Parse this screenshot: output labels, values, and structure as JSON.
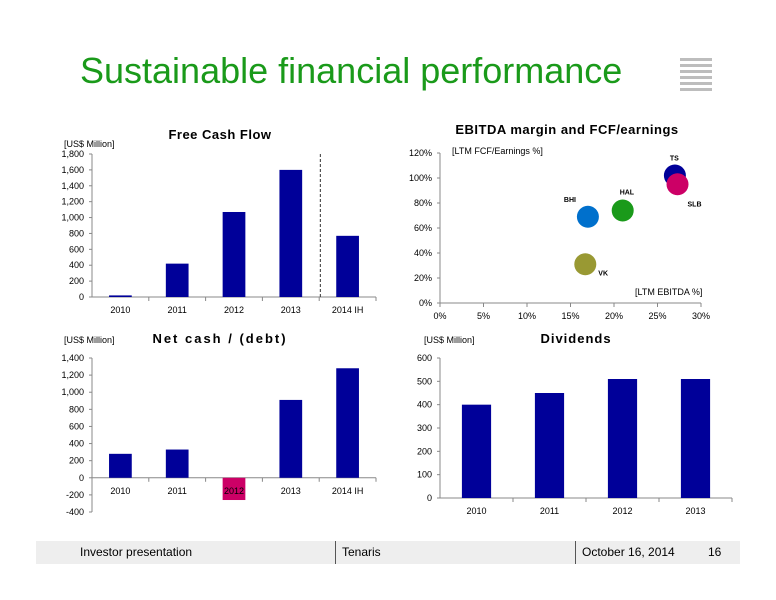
{
  "title": "Sustainable financial performance",
  "logo_icon": "tenaris-logo-icon",
  "footer": {
    "left": "Investor presentation",
    "center": "Tenaris",
    "date": "October 16, 2014",
    "page": "16"
  },
  "colors": {
    "bar": "#000099",
    "negative": "#cc0066",
    "title": "#1a9a1a"
  },
  "chart_data": [
    {
      "id": "fcf",
      "type": "bar",
      "title": "Free Cash Flow",
      "unit_label": "[US$ Million]",
      "categories": [
        "2010",
        "2011",
        "2012",
        "2013",
        "2014 IH"
      ],
      "values": [
        20,
        420,
        1070,
        1600,
        770
      ],
      "ylim": [
        0,
        1800
      ],
      "yticks": [
        "0",
        "200",
        "400",
        "600",
        "800",
        "1,000",
        "1,200",
        "1,400",
        "1,600",
        "1,800"
      ],
      "ytick_values": [
        0,
        200,
        400,
        600,
        800,
        1000,
        1200,
        1400,
        1600,
        1800
      ],
      "grid": false,
      "dashed_separator_before": "2014 IH"
    },
    {
      "id": "ebitda",
      "type": "scatter",
      "title": "EBITDA margin and FCF/earnings",
      "ylabel": "[LTM FCF/Earnings %]",
      "xlabel": "[LTM EBITDA %]",
      "xlim": [
        0,
        30
      ],
      "ylim": [
        0,
        120
      ],
      "xticks": [
        "0%",
        "5%",
        "10%",
        "15%",
        "20%",
        "25%",
        "30%"
      ],
      "xtick_values": [
        0,
        5,
        10,
        15,
        20,
        25,
        30
      ],
      "yticks": [
        "0%",
        "20%",
        "40%",
        "60%",
        "80%",
        "100%",
        "120%"
      ],
      "ytick_values": [
        0,
        20,
        40,
        60,
        80,
        100,
        120
      ],
      "points": [
        {
          "label": "TS",
          "x": 27.0,
          "y": 102,
          "color": "#000099"
        },
        {
          "label": "SLB",
          "x": 27.3,
          "y": 95,
          "color": "#cc0066"
        },
        {
          "label": "HAL",
          "x": 21.0,
          "y": 74,
          "color": "#1a9a1a"
        },
        {
          "label": "BHI",
          "x": 17.0,
          "y": 69,
          "color": "#0070cc"
        },
        {
          "label": "VK",
          "x": 16.7,
          "y": 31,
          "color": "#999933"
        }
      ]
    },
    {
      "id": "netcash",
      "type": "bar",
      "title": "Net cash / (debt)",
      "unit_label": "[US$ Million]",
      "categories": [
        "2010",
        "2011",
        "2012",
        "2013",
        "2014 IH"
      ],
      "values": [
        280,
        330,
        -260,
        910,
        1280
      ],
      "ylim": [
        -400,
        1400
      ],
      "yticks": [
        "-400",
        "-200",
        "0",
        "200",
        "400",
        "600",
        "800",
        "1,000",
        "1,200",
        "1,400"
      ],
      "ytick_values": [
        -400,
        -200,
        0,
        200,
        400,
        600,
        800,
        1000,
        1200,
        1400
      ],
      "grid": false
    },
    {
      "id": "dividends",
      "type": "bar",
      "title": "Dividends",
      "unit_label": "[US$ Million]",
      "categories": [
        "2010",
        "2011",
        "2012",
        "2013"
      ],
      "values": [
        400,
        450,
        510,
        510
      ],
      "ylim": [
        0,
        600
      ],
      "yticks": [
        "0",
        "100",
        "200",
        "300",
        "400",
        "500",
        "600"
      ],
      "ytick_values": [
        0,
        100,
        200,
        300,
        400,
        500,
        600
      ],
      "grid": false
    }
  ]
}
